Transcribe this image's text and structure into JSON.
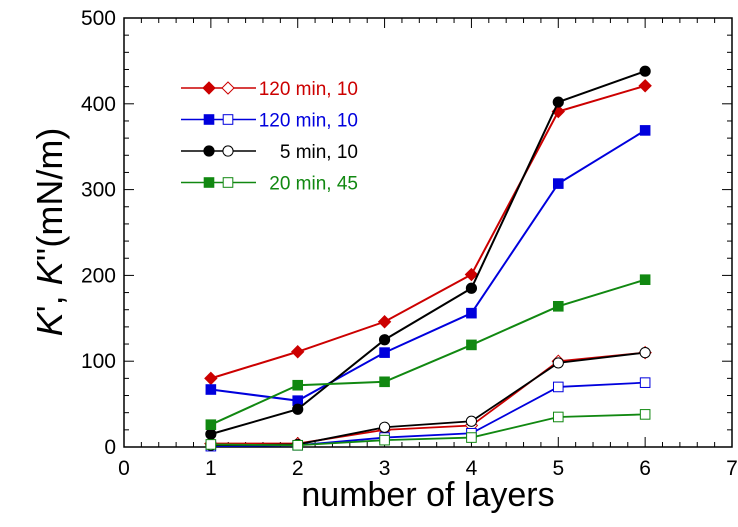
{
  "chart_data": {
    "type": "line",
    "xlabel": "number of layers",
    "ylabel_parts": [
      "K",
      "', ",
      "K",
      "''",
      "(mN/m)"
    ],
    "xlim": [
      0,
      7
    ],
    "ylim": [
      0,
      500
    ],
    "xticks": [
      "0",
      "1",
      "2",
      "3",
      "4",
      "5",
      "6",
      "7"
    ],
    "yticks": [
      "0",
      "100",
      "200",
      "300",
      "400",
      "500"
    ],
    "grid": false,
    "legend_placement": "top-left",
    "x": [
      1,
      2,
      3,
      4,
      5,
      6
    ],
    "series": [
      {
        "name": "120 min, 10",
        "color": "#cc0000",
        "marker": "diamond",
        "filled_values": [
          80,
          111,
          146,
          201,
          391,
          421
        ],
        "open_values": [
          4,
          4,
          20,
          25,
          100,
          110
        ]
      },
      {
        "name": "120 min, 10",
        "color": "#0000dd",
        "marker": "square",
        "filled_values": [
          67,
          54,
          110,
          156,
          307,
          369
        ],
        "open_values": [
          1,
          2,
          11,
          16,
          70,
          75
        ]
      },
      {
        "name": "5 min, 10",
        "color": "#000000",
        "marker": "circle",
        "filled_values": [
          15,
          44,
          125,
          185,
          402,
          438
        ],
        "open_values": [
          2,
          3,
          23,
          30,
          98,
          110
        ]
      },
      {
        "name": "20 min, 45",
        "color": "#118811",
        "marker": "square",
        "filled_values": [
          26,
          72,
          76,
          119,
          164,
          195
        ],
        "open_values": [
          3,
          2,
          8,
          11,
          35,
          38
        ]
      }
    ]
  }
}
